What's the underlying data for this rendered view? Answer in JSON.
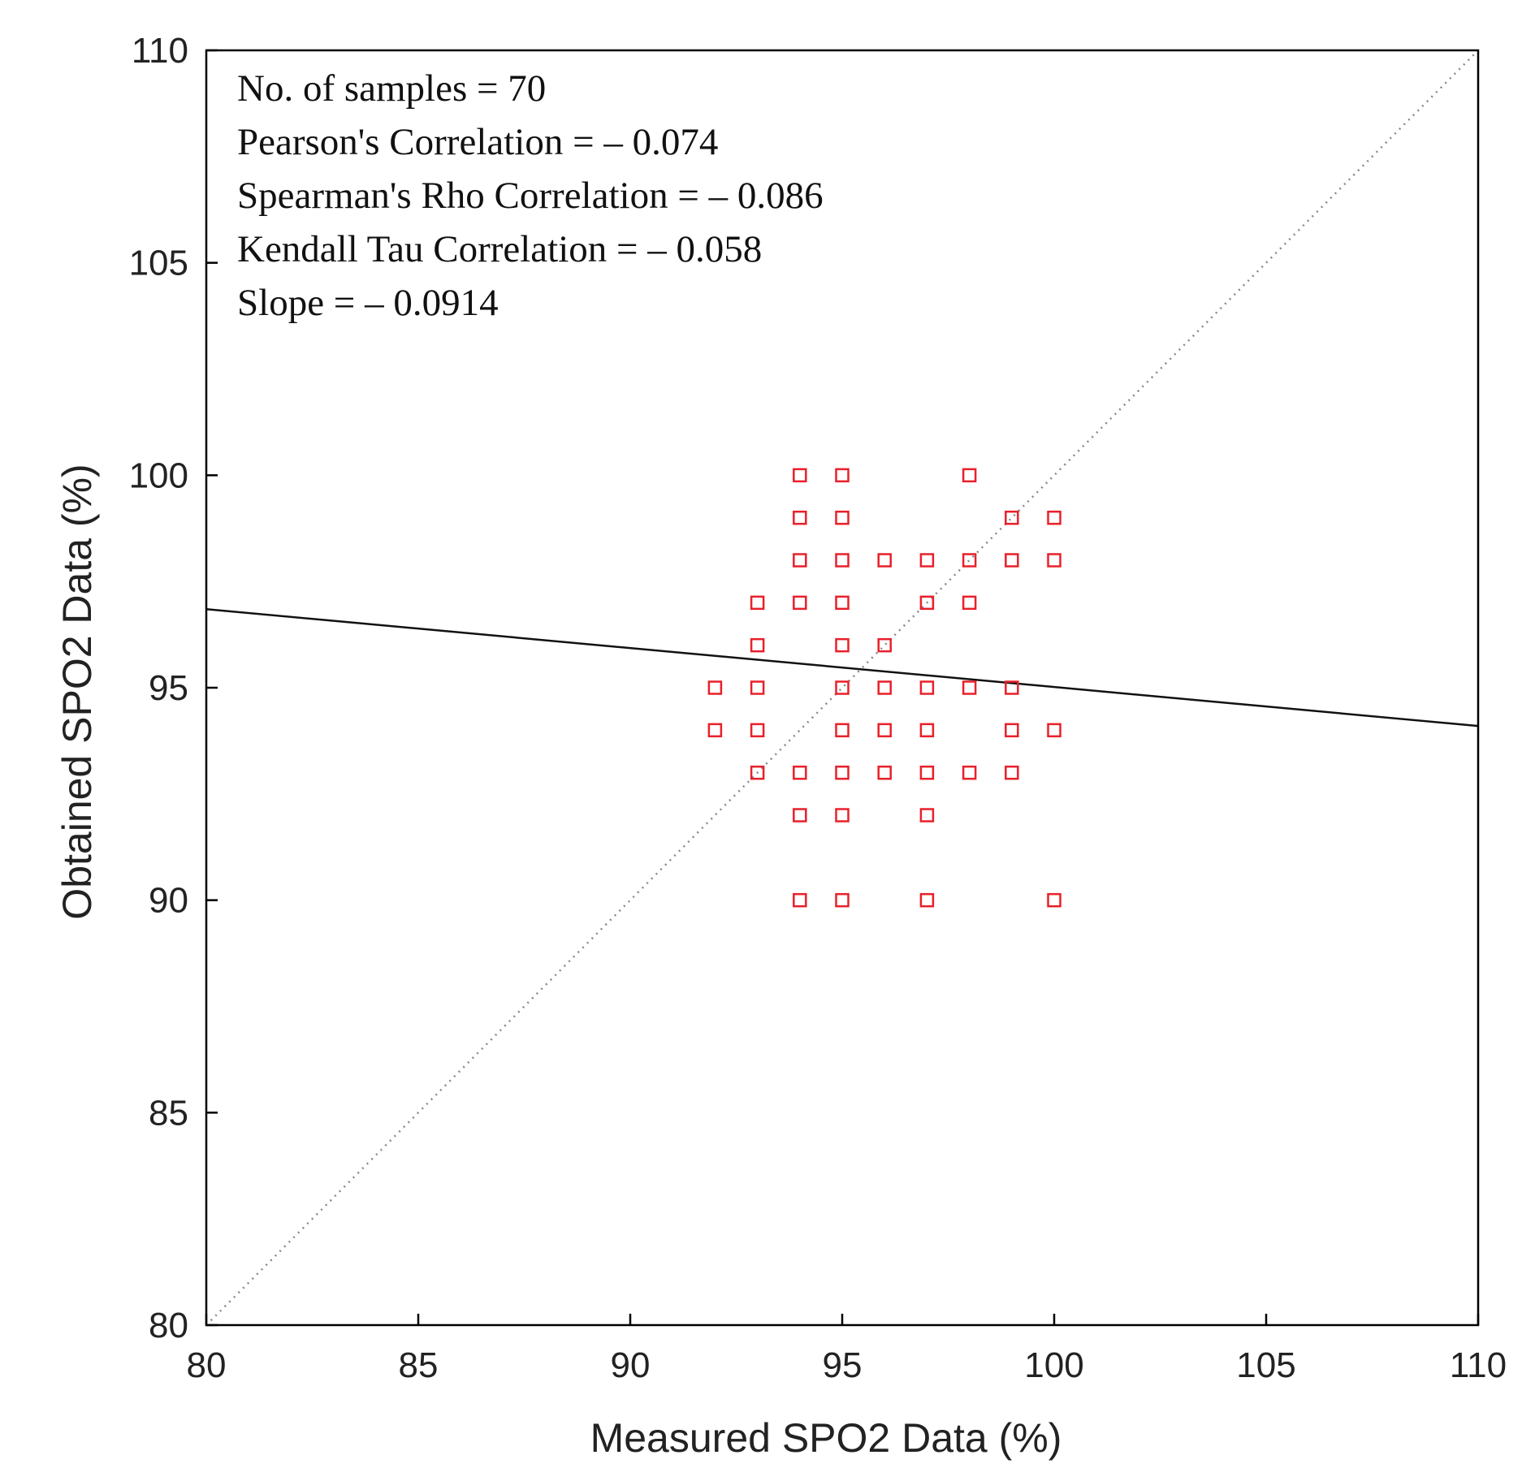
{
  "chart_data": {
    "type": "scatter",
    "title": "",
    "xlabel": "Measured SPO2 Data (%)",
    "ylabel": "Obtained SPO2 Data (%)",
    "xlim": [
      80,
      110
    ],
    "ylim": [
      80,
      110
    ],
    "xticks": [
      "80",
      "85",
      "90",
      "95",
      "100",
      "105",
      "110"
    ],
    "yticks": [
      "80",
      "85",
      "90",
      "95",
      "100",
      "105",
      "110"
    ],
    "grid": false,
    "legend": "none",
    "colors": {
      "points": "#e8202a",
      "fit_line": "#111111",
      "identity_line": "#888888",
      "axes": "#000000"
    },
    "annotations": [
      "No. of samples = 70",
      "Pearson's Correlation = – 0.074",
      "Spearman's Rho Correlation = – 0.086",
      "Kendall Tau Correlation = – 0.058",
      "Slope = – 0.0914"
    ],
    "fit_line": {
      "x": [
        80,
        110
      ],
      "y": [
        96.85,
        94.1
      ]
    },
    "identity_line": {
      "x": [
        80,
        110
      ],
      "y": [
        80,
        110
      ]
    },
    "series": [
      {
        "name": "samples",
        "marker": "open-square",
        "points": [
          [
            92,
            95
          ],
          [
            92,
            94
          ],
          [
            93,
            97
          ],
          [
            93,
            96
          ],
          [
            93,
            95
          ],
          [
            93,
            94
          ],
          [
            93,
            93
          ],
          [
            94,
            100
          ],
          [
            94,
            99
          ],
          [
            94,
            98
          ],
          [
            94,
            97
          ],
          [
            94,
            93
          ],
          [
            94,
            92
          ],
          [
            94,
            90
          ],
          [
            95,
            100
          ],
          [
            95,
            99
          ],
          [
            95,
            98
          ],
          [
            95,
            97
          ],
          [
            95,
            96
          ],
          [
            95,
            95
          ],
          [
            95,
            94
          ],
          [
            95,
            93
          ],
          [
            95,
            92
          ],
          [
            95,
            90
          ],
          [
            96,
            98
          ],
          [
            96,
            96
          ],
          [
            96,
            95
          ],
          [
            96,
            94
          ],
          [
            96,
            93
          ],
          [
            97,
            98
          ],
          [
            97,
            97
          ],
          [
            97,
            95
          ],
          [
            97,
            94
          ],
          [
            97,
            93
          ],
          [
            97,
            92
          ],
          [
            97,
            90
          ],
          [
            98,
            100
          ],
          [
            98,
            98
          ],
          [
            98,
            97
          ],
          [
            98,
            95
          ],
          [
            98,
            93
          ],
          [
            99,
            99
          ],
          [
            99,
            98
          ],
          [
            99,
            95
          ],
          [
            99,
            94
          ],
          [
            99,
            93
          ],
          [
            100,
            99
          ],
          [
            100,
            98
          ],
          [
            100,
            94
          ],
          [
            100,
            90
          ]
        ]
      }
    ]
  }
}
